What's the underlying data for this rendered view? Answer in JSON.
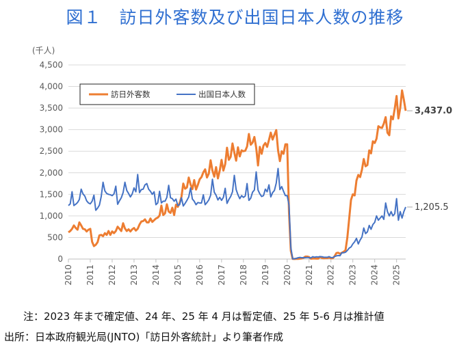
{
  "title": "図１　訪日外客数及び出国日本人数の推移",
  "notes": {
    "note": "注：2023 年まで確定値、24 年、25 年 4 月は暫定値、25 年 5-6 月は推計値",
    "source": "出所：日本政府観光局(JNTO)「訪日外客統計」より筆者作成"
  },
  "chart_data": {
    "type": "line",
    "ylabel": "(千人)",
    "ylim": [
      0,
      4500
    ],
    "yticks": [
      0,
      500,
      1000,
      1500,
      2000,
      2500,
      3000,
      3500,
      4000,
      4500
    ],
    "ytick_labels": [
      "0",
      "500",
      "1,000",
      "1,500",
      "2,000",
      "2,500",
      "3,000",
      "3,500",
      "4,000",
      "4,500"
    ],
    "xlim": [
      "2010-01",
      "2025-06"
    ],
    "x_tick_labels": [
      "2010",
      "2011",
      "2012",
      "2013",
      "2014",
      "2015",
      "2016",
      "2017",
      "2018",
      "2019",
      "2020",
      "2021",
      "2022",
      "2023",
      "2024",
      "2025"
    ],
    "grid": true,
    "legend_position": "top-left",
    "series": [
      {
        "name": "訪日外客数",
        "color": "#ed7d31",
        "end_label": "3,437.0",
        "values": [
          620,
          650,
          700,
          780,
          720,
          680,
          850,
          780,
          700,
          690,
          640,
          680,
          700,
          400,
          300,
          330,
          390,
          550,
          560,
          530,
          600,
          560,
          650,
          560,
          640,
          600,
          650,
          750,
          700,
          650,
          830,
          710,
          650,
          690,
          640,
          690,
          720,
          660,
          700,
          800,
          870,
          880,
          920,
          850,
          850,
          940,
          860,
          900,
          940,
          960,
          1010,
          1240,
          1020,
          1060,
          1270,
          1100,
          1070,
          1190,
          1020,
          1260,
          1210,
          1300,
          1440,
          1750,
          1630,
          1660,
          1890,
          1730,
          1620,
          1830,
          1610,
          1720,
          1850,
          1900,
          2010,
          2080,
          1890,
          1980,
          2290,
          2050,
          1910,
          2130,
          1870,
          2050,
          2300,
          2050,
          2200,
          2580,
          2300,
          2370,
          2680,
          2470,
          2280,
          2590,
          2380,
          2520,
          2500,
          2510,
          2610,
          2900,
          2650,
          2700,
          2830,
          2580,
          2170,
          2600,
          2440,
          2630,
          2690,
          2600,
          2760,
          2930,
          2770,
          2880,
          2990,
          2520,
          2270,
          2500,
          2440,
          2660,
          2660,
          1080,
          190,
          3,
          2,
          3,
          4,
          9,
          14,
          28,
          57,
          58,
          46,
          7,
          12,
          11,
          10,
          9,
          51,
          26,
          18,
          22,
          21,
          35,
          18,
          17,
          66,
          139,
          147,
          121,
          145,
          169,
          207,
          499,
          934,
          1370,
          1500,
          1475,
          1820,
          1950,
          1900,
          2070,
          2320,
          2150,
          2180,
          2520,
          2450,
          2730,
          2690,
          2790,
          3080,
          3050,
          3040,
          3140,
          3290,
          2930,
          2870,
          3310,
          3240,
          3490,
          3780,
          3260,
          3500,
          3910,
          3690,
          3437
        ]
      },
      {
        "name": "出国日本人数",
        "color": "#4472c4",
        "end_label": "1,205.5",
        "values": [
          1240,
          1280,
          1560,
          1240,
          1270,
          1310,
          1380,
          1620,
          1510,
          1460,
          1350,
          1300,
          1280,
          1340,
          1480,
          1130,
          1180,
          1250,
          1450,
          1780,
          1580,
          1520,
          1500,
          1490,
          1470,
          1510,
          1690,
          1270,
          1350,
          1420,
          1540,
          1780,
          1590,
          1520,
          1440,
          1510,
          1650,
          1560,
          1960,
          1540,
          1610,
          1620,
          1720,
          1750,
          1620,
          1570,
          1500,
          1560,
          1260,
          1300,
          1570,
          1300,
          1340,
          1340,
          1430,
          1710,
          1420,
          1400,
          1340,
          1390,
          1240,
          1260,
          1420,
          1230,
          1290,
          1360,
          1440,
          1650,
          1390,
          1340,
          1260,
          1310,
          1300,
          1300,
          1490,
          1260,
          1310,
          1370,
          1480,
          1850,
          1550,
          1480,
          1370,
          1430,
          1360,
          1430,
          1640,
          1290,
          1380,
          1450,
          1560,
          1940,
          1610,
          1490,
          1400,
          1470,
          1430,
          1460,
          1750,
          1360,
          1410,
          1550,
          1600,
          2020,
          1600,
          1510,
          1450,
          1470,
          1620,
          1560,
          1720,
          1440,
          1540,
          1590,
          1760,
          2100,
          1610,
          1680,
          1570,
          1470,
          1470,
          1250,
          270,
          4,
          8,
          16,
          30,
          37,
          30,
          33,
          31,
          37,
          32,
          26,
          55,
          42,
          52,
          47,
          56,
          54,
          44,
          42,
          41,
          56,
          35,
          34,
          58,
          73,
          81,
          78,
          149,
          145,
          158,
          200,
          253,
          280,
          350,
          400,
          480,
          350,
          440,
          510,
          720,
          590,
          630,
          780,
          690,
          800,
          850,
          1000,
          900,
          950,
          1000,
          920,
          1300,
          1100,
          1000,
          1100,
          1000,
          1050,
          1400,
          900,
          1100,
          950,
          1100,
          1205.5
        ]
      }
    ]
  }
}
